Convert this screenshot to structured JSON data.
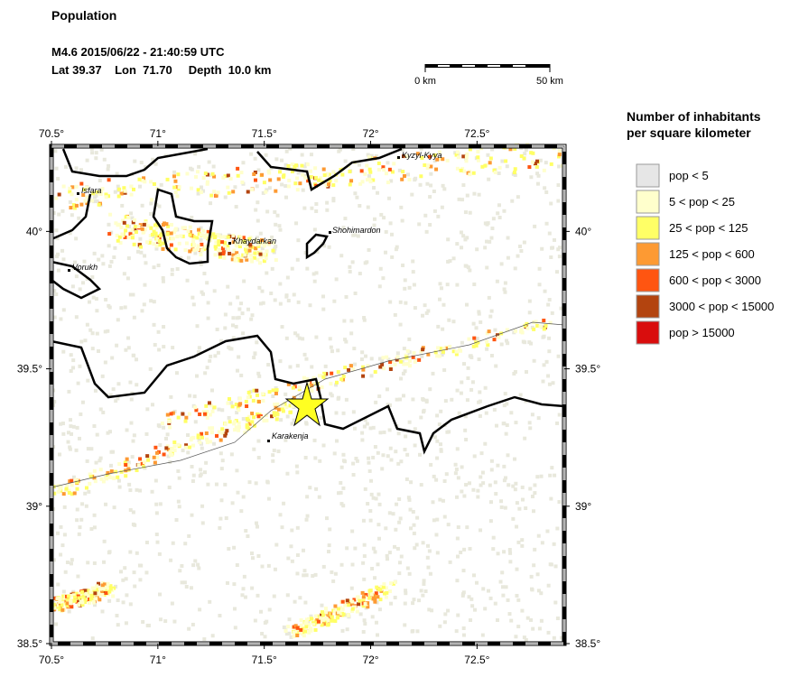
{
  "header": {
    "title": "Population",
    "event": "M4.6  2015/06/22 - 21:40:59 UTC",
    "location": "Lat 39.37    Lon  71.70     Depth  10.0 km"
  },
  "scale_bar": {
    "start": "0 km",
    "end": "50 km"
  },
  "map": {
    "xlim": [
      70.5,
      72.91
    ],
    "ylim": [
      38.5,
      40.31
    ],
    "xticks": [
      {
        "value": 70.5,
        "label": "70.5°"
      },
      {
        "value": 71,
        "label": "71°"
      },
      {
        "value": 71.5,
        "label": "71.5°"
      },
      {
        "value": 72,
        "label": "72°"
      },
      {
        "value": 72.5,
        "label": "72.5°"
      }
    ],
    "yticks": [
      {
        "value": 38.5,
        "label": "38.5°"
      },
      {
        "value": 39,
        "label": "39°"
      },
      {
        "value": 39.5,
        "label": "39.5°"
      },
      {
        "value": 40,
        "label": "40°"
      }
    ],
    "places": [
      "Isfara",
      "Khaydarkan",
      "Shohimardon",
      "Kyzyl-Kyya",
      "Vorukh",
      "Karakenja"
    ]
  },
  "legend": {
    "title_line1": "Number of inhabitants",
    "title_line2": "per square kilometer",
    "items": [
      {
        "label": "pop < 5",
        "color": "#e6e6e6"
      },
      {
        "label": "5 < pop < 25",
        "color": "#ffffcc"
      },
      {
        "label": "25 < pop < 125",
        "color": "#ffff66"
      },
      {
        "label": "125 < pop < 600",
        "color": "#fd9a33"
      },
      {
        "label": "600 < pop < 3000",
        "color": "#ff5511"
      },
      {
        "label": "3000 < pop < 15000",
        "color": "#b3440f"
      },
      {
        "label": "pop > 15000",
        "color": "#d90d0d"
      }
    ]
  }
}
